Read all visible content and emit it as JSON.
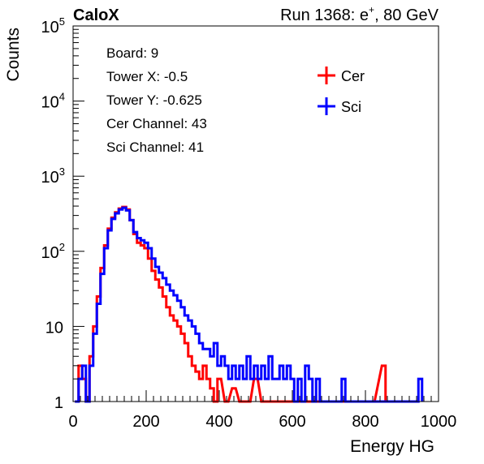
{
  "header": {
    "left_label": "CaloX",
    "run_prefix": "Run 1368: e",
    "run_sup": "+",
    "run_suffix": ", 80 GeV"
  },
  "info_box": [
    "Board: 9",
    "Tower X: -0.5",
    "Tower Y: -0.625",
    "Cer Channel: 43",
    "Sci Channel: 41"
  ],
  "chart_data": {
    "type": "line",
    "style": "step-histogram-with-error-bars",
    "xlabel": "Energy HG",
    "ylabel": "Counts",
    "xlim": [
      0,
      1000
    ],
    "ylim": [
      1,
      100000
    ],
    "log_y": true,
    "x_ticks": [
      "0",
      "200",
      "400",
      "600",
      "800",
      "1000"
    ],
    "y_ticks": [
      {
        "base": "1",
        "exp": ""
      },
      {
        "base": "10",
        "exp": ""
      },
      {
        "base": "10",
        "exp": "2"
      },
      {
        "base": "10",
        "exp": "3"
      },
      {
        "base": "10",
        "exp": "4"
      },
      {
        "base": "10",
        "exp": "5"
      }
    ],
    "legend_placement": "top-right",
    "series": [
      {
        "name": "Cer",
        "color": "#ff0000",
        "x": [
          10,
          20,
          30,
          40,
          50,
          60,
          70,
          80,
          90,
          100,
          110,
          120,
          130,
          140,
          150,
          160,
          170,
          180,
          190,
          200,
          210,
          220,
          230,
          240,
          250,
          260,
          270,
          280,
          290,
          300,
          310,
          320,
          330,
          340,
          350,
          360,
          370,
          380,
          390,
          400,
          420,
          440,
          460,
          480,
          500,
          520,
          540,
          560,
          580,
          600,
          620,
          640,
          660,
          700,
          740,
          780,
          820,
          850
        ],
        "y": [
          1,
          3,
          2,
          1,
          4,
          10,
          25,
          60,
          120,
          200,
          280,
          330,
          370,
          390,
          360,
          260,
          170,
          130,
          120,
          110,
          80,
          55,
          42,
          33,
          25,
          18,
          14,
          12,
          10,
          8,
          6,
          4,
          3,
          2.5,
          2,
          3,
          2,
          1.5,
          1,
          2,
          1,
          1.5,
          1,
          1,
          2,
          1,
          1,
          1,
          1,
          1,
          1,
          1,
          1,
          1,
          1,
          1,
          1,
          3
        ]
      },
      {
        "name": "Sci",
        "color": "#0000ff",
        "x": [
          10,
          20,
          30,
          40,
          50,
          60,
          70,
          80,
          90,
          100,
          110,
          120,
          130,
          140,
          150,
          160,
          170,
          180,
          190,
          200,
          210,
          220,
          230,
          240,
          250,
          260,
          270,
          280,
          290,
          300,
          310,
          320,
          330,
          340,
          350,
          360,
          370,
          380,
          390,
          400,
          410,
          420,
          430,
          440,
          450,
          460,
          470,
          480,
          490,
          500,
          510,
          520,
          530,
          540,
          550,
          560,
          570,
          580,
          590,
          600,
          610,
          620,
          630,
          640,
          650,
          660,
          670,
          680,
          690,
          700,
          710,
          720,
          730,
          740,
          750,
          760,
          770,
          780,
          790,
          800,
          810,
          820,
          830,
          840,
          850,
          860,
          870,
          880,
          890,
          900,
          910,
          920,
          930,
          940,
          950
        ],
        "y": [
          1,
          2,
          3,
          1,
          3,
          8,
          20,
          50,
          110,
          190,
          270,
          320,
          360,
          380,
          350,
          260,
          180,
          150,
          140,
          130,
          110,
          80,
          62,
          52,
          44,
          36,
          30,
          26,
          22,
          18,
          14,
          12,
          10,
          8,
          6,
          5,
          5,
          4,
          6,
          3,
          4,
          3,
          2,
          3,
          2,
          3,
          2,
          4,
          2,
          3,
          2,
          3,
          2,
          4,
          2,
          2,
          3,
          2,
          3,
          2,
          1,
          2,
          1,
          3,
          2,
          1,
          2,
          1,
          1,
          1,
          1,
          1,
          1,
          2,
          1,
          1,
          1,
          1,
          1,
          1,
          1,
          1,
          1,
          1,
          1,
          1,
          1,
          1,
          1,
          1,
          1,
          1,
          1,
          1,
          2
        ]
      }
    ]
  }
}
